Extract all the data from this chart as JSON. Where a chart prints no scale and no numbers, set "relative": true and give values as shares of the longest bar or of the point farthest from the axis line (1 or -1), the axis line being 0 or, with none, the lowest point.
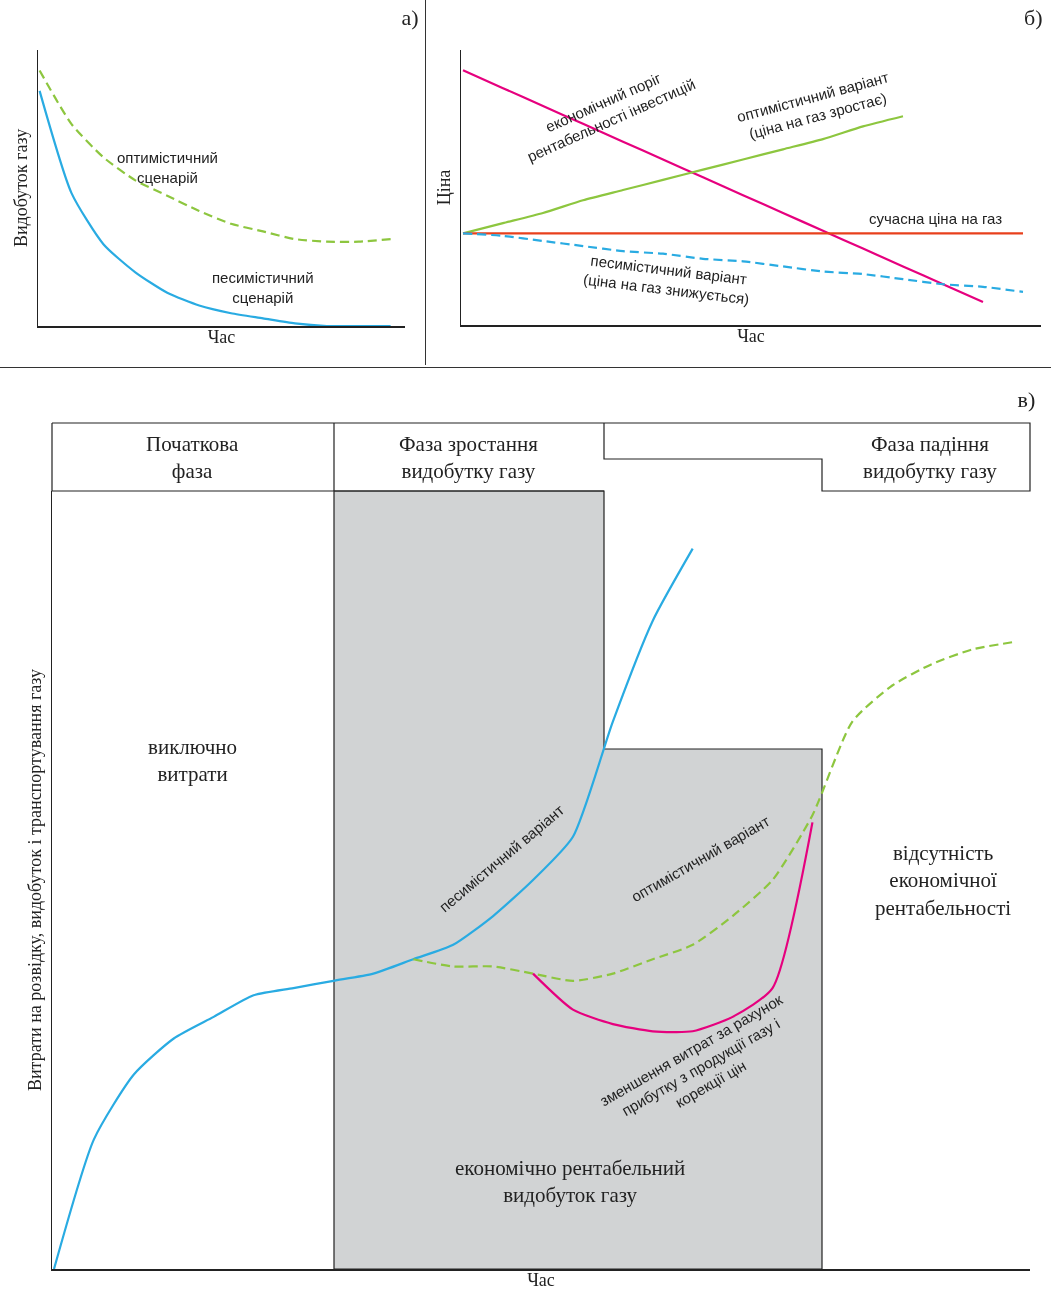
{
  "chart_data": [
    {
      "type": "line",
      "title": "а)",
      "xlabel": "Час",
      "ylabel": "Видобуток газу",
      "relative": true,
      "tick_labels": false,
      "categories": [
        null,
        null,
        null,
        null,
        null,
        null,
        null,
        null,
        null,
        null,
        null,
        null
      ],
      "series": [
        {
          "name": "оптимістичний сценарій",
          "color": "#8dc63f",
          "line_style": "dashed",
          "values": [
            1,
            0.79,
            0.66,
            0.57,
            0.51,
            0.45,
            0.4,
            0.37,
            0.34,
            0.33,
            0.33,
            0.34
          ]
        },
        {
          "name": "песимістичний сценарій",
          "color": "#29abe2",
          "line_style": "solid",
          "values": [
            0.92,
            0.52,
            0.32,
            0.21,
            0.13,
            0.08,
            0.05,
            0.03,
            0.01,
            0,
            0,
            0
          ]
        }
      ]
    },
    {
      "type": "line",
      "title": "б)",
      "xlabel": "Час",
      "ylabel": "Ціна",
      "relative": true,
      "tick_labels": false,
      "categories": [
        null,
        null,
        null,
        null,
        null,
        null,
        null,
        null,
        null,
        null,
        null,
        null,
        null,
        null,
        null
      ],
      "series": [
        {
          "name": "економічний поріг рентабельності інвестицій",
          "color": "#e6007e",
          "line_style": "solid",
          "values": [
            1,
            0.93,
            0.86,
            0.79,
            0.72,
            0.65,
            0.58,
            0.51,
            0.44,
            0.37,
            0.3,
            0.23,
            0.16,
            0.09,
            null
          ]
        },
        {
          "name": "оптимістичний варіант (ціна на газ зростає)",
          "color": "#8dc63f",
          "line_style": "solid",
          "values": [
            0.36,
            0.4,
            0.44,
            0.49,
            0.53,
            0.57,
            0.61,
            0.65,
            0.69,
            0.73,
            0.78,
            0.82,
            null,
            null,
            null
          ]
        },
        {
          "name": "сучасна ціна на газ",
          "color": "#e8401c",
          "line_style": "solid",
          "values": [
            0.36,
            0.36,
            0.36,
            0.36,
            0.36,
            0.36,
            0.36,
            0.36,
            0.36,
            0.36,
            0.36,
            0.36,
            0.36,
            0.36,
            0.36
          ]
        },
        {
          "name": "песимістичний варіант (ціна на газ знижується)",
          "color": "#29abe2",
          "line_style": "dashed",
          "values": [
            0.36,
            0.35,
            0.33,
            0.31,
            0.29,
            0.28,
            0.26,
            0.25,
            0.23,
            0.21,
            0.2,
            0.18,
            0.16,
            0.15,
            0.13
          ]
        }
      ]
    },
    {
      "type": "line",
      "title": "в)",
      "xlabel": "Час",
      "ylabel": "Витрати на розвідку, видобуток і транспортування газу",
      "relative": true,
      "tick_labels": false,
      "categories": [
        null,
        null,
        null,
        null,
        null,
        null,
        null,
        null,
        null,
        null,
        null,
        null,
        null,
        null,
        null,
        null,
        null,
        null,
        null,
        null,
        null,
        null,
        null,
        null,
        null
      ],
      "annotations": [
        "Початкова фаза",
        "Фаза зростання видобутку газу",
        "Фаза падіння видобутку газу",
        "виключно витрати",
        "відсутність економічної рентабельності",
        "економічно рентабельний видобуток газу"
      ],
      "series": [
        {
          "name": "песимістичний варіант",
          "color": "#29abe2",
          "line_style": "solid",
          "values": [
            0,
            0.18,
            0.27,
            0.32,
            0.35,
            0.38,
            0.39,
            0.4,
            0.41,
            0.43,
            0.45,
            0.49,
            0.54,
            0.6,
            0.76,
            0.9,
            1,
            null,
            null,
            null,
            null,
            null,
            null,
            null,
            null
          ]
        },
        {
          "name": "оптимістичний варіант",
          "color": "#8dc63f",
          "line_style": "dashed",
          "values": [
            null,
            null,
            null,
            null,
            null,
            null,
            null,
            null,
            null,
            0.43,
            0.42,
            0.42,
            0.41,
            0.4,
            0.41,
            0.43,
            0.45,
            0.49,
            0.54,
            0.63,
            0.76,
            0.81,
            0.84,
            0.86,
            0.87
          ]
        },
        {
          "name": "зменшення витрат за рахунок прибутку з продукції газу і корекції цін",
          "color": "#e6007e",
          "line_style": "solid",
          "values": [
            null,
            null,
            null,
            null,
            null,
            null,
            null,
            null,
            null,
            null,
            null,
            null,
            0.41,
            0.36,
            0.34,
            0.33,
            0.33,
            0.35,
            0.39,
            0.62,
            null,
            null,
            null,
            null,
            null
          ]
        }
      ]
    }
  ]
}
